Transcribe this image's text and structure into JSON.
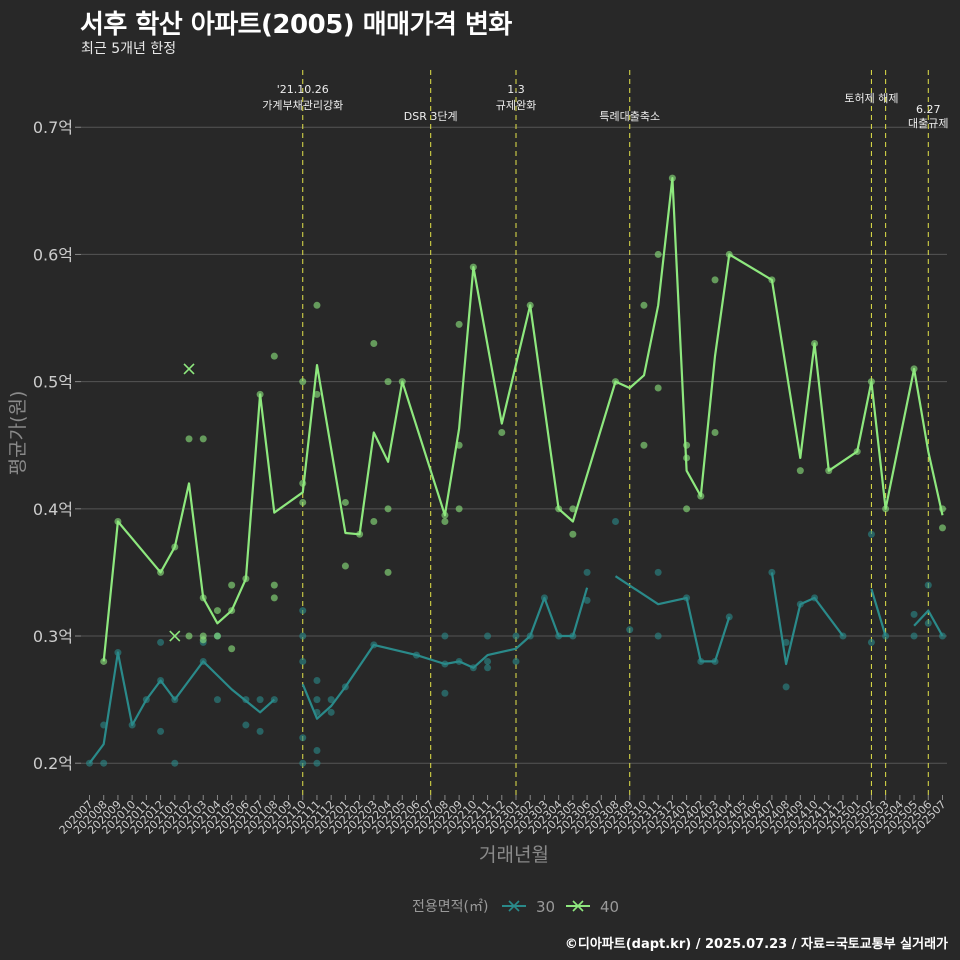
{
  "header": {
    "title": "서후 학산 아파트(2005) 매매가격 변화",
    "subtitle": "최근 5개년 한정"
  },
  "footer": {
    "credit": "©디아파트(dapt.kr) / 2025.07.23 / 자료=국토교통부 실거래가"
  },
  "colors": {
    "s30": "#2a8a8a",
    "s40": "#8ee87e",
    "event_line": "#e3e34a",
    "grid": "#555555",
    "text": "#cccccc"
  },
  "chart_data": {
    "type": "line",
    "xlabel": "거래년월",
    "ylabel": "평균가(원)",
    "ylim": [
      0.175,
      0.745
    ],
    "yticks": [
      0.2,
      0.3,
      0.4,
      0.5,
      0.6,
      0.7
    ],
    "ytick_labels": [
      "0.2억",
      "0.3억",
      "0.4억",
      "0.5억",
      "0.6억",
      "0.7억"
    ],
    "months": [
      "202007",
      "202008",
      "202009",
      "202010",
      "202011",
      "202012",
      "202101",
      "202102",
      "202103",
      "202104",
      "202105",
      "202106",
      "202107",
      "202108",
      "202109",
      "202110",
      "202111",
      "202112",
      "202201",
      "202202",
      "202203",
      "202204",
      "202205",
      "202206",
      "202207",
      "202208",
      "202209",
      "202210",
      "202211",
      "202212",
      "202301",
      "202302",
      "202303",
      "202304",
      "202305",
      "202306",
      "202307",
      "202308",
      "202309",
      "202310",
      "202311",
      "202312",
      "202401",
      "202402",
      "202403",
      "202404",
      "202405",
      "202406",
      "202407",
      "202408",
      "202409",
      "202410",
      "202411",
      "202412",
      "202501",
      "202502",
      "202503",
      "202504",
      "202505",
      "202506",
      "202507"
    ],
    "legend_title": "전용면적(㎡)",
    "legend_position": "bottom",
    "series": [
      {
        "name": "30",
        "color": "#2a8a8a",
        "lines": [
          [
            [
              0,
              0.2
            ],
            [
              1,
              0.215
            ],
            [
              2,
              0.287
            ],
            [
              3,
              0.23
            ],
            [
              4,
              0.25
            ],
            [
              5,
              0.265
            ],
            [
              6,
              0.25
            ],
            [
              8,
              0.28
            ],
            [
              10,
              0.258
            ],
            [
              12,
              0.24
            ],
            [
              13,
              0.25
            ]
          ],
          [
            [
              15,
              0.262
            ],
            [
              16,
              0.235
            ],
            [
              17,
              0.245
            ],
            [
              18,
              0.26
            ],
            [
              20,
              0.293
            ],
            [
              23,
              0.285
            ],
            [
              25,
              0.278
            ],
            [
              26,
              0.28
            ],
            [
              27,
              0.275
            ],
            [
              28,
              0.285
            ],
            [
              30,
              0.29
            ],
            [
              31,
              0.3
            ],
            [
              32,
              0.33
            ],
            [
              33,
              0.3
            ],
            [
              34,
              0.3
            ],
            [
              35,
              0.338
            ]
          ],
          [
            [
              37,
              0.347
            ],
            [
              40,
              0.325
            ],
            [
              42,
              0.33
            ],
            [
              43,
              0.28
            ],
            [
              44,
              0.28
            ],
            [
              45,
              0.315
            ]
          ],
          [
            [
              48,
              0.35
            ],
            [
              49,
              0.278
            ],
            [
              50,
              0.325
            ],
            [
              51,
              0.33
            ],
            [
              53,
              0.3
            ]
          ],
          [
            [
              55,
              0.337
            ],
            [
              56,
              0.3
            ]
          ],
          [
            [
              58,
              0.308
            ],
            [
              59,
              0.32
            ],
            [
              60,
              0.3
            ]
          ]
        ],
        "points": [
          [
            0,
            0.2
          ],
          [
            1,
            0.23
          ],
          [
            1,
            0.2
          ],
          [
            2,
            0.287
          ],
          [
            3,
            0.23
          ],
          [
            4,
            0.25
          ],
          [
            5,
            0.295
          ],
          [
            5,
            0.265
          ],
          [
            5,
            0.225
          ],
          [
            6,
            0.25
          ],
          [
            6,
            0.2
          ],
          [
            8,
            0.28
          ],
          [
            8,
            0.295
          ],
          [
            9,
            0.3
          ],
          [
            9,
            0.25
          ],
          [
            11,
            0.25
          ],
          [
            11,
            0.23
          ],
          [
            12,
            0.225
          ],
          [
            12,
            0.25
          ],
          [
            13,
            0.25
          ],
          [
            15,
            0.32
          ],
          [
            15,
            0.3
          ],
          [
            15,
            0.28
          ],
          [
            15,
            0.22
          ],
          [
            15,
            0.2
          ],
          [
            16,
            0.265
          ],
          [
            16,
            0.25
          ],
          [
            16,
            0.24
          ],
          [
            16,
            0.21
          ],
          [
            16,
            0.2
          ],
          [
            17,
            0.25
          ],
          [
            17,
            0.24
          ],
          [
            18,
            0.26
          ],
          [
            20,
            0.293
          ],
          [
            23,
            0.285
          ],
          [
            25,
            0.3
          ],
          [
            25,
            0.278
          ],
          [
            25,
            0.255
          ],
          [
            26,
            0.28
          ],
          [
            27,
            0.275
          ],
          [
            28,
            0.3
          ],
          [
            28,
            0.28
          ],
          [
            28,
            0.275
          ],
          [
            30,
            0.3
          ],
          [
            30,
            0.28
          ],
          [
            31,
            0.3
          ],
          [
            32,
            0.33
          ],
          [
            33,
            0.3
          ],
          [
            34,
            0.3
          ],
          [
            35,
            0.35
          ],
          [
            35,
            0.328
          ],
          [
            37,
            0.39
          ],
          [
            38,
            0.305
          ],
          [
            40,
            0.35
          ],
          [
            40,
            0.3
          ],
          [
            42,
            0.33
          ],
          [
            43,
            0.28
          ],
          [
            44,
            0.28
          ],
          [
            45,
            0.315
          ],
          [
            48,
            0.35
          ],
          [
            49,
            0.295
          ],
          [
            49,
            0.26
          ],
          [
            50,
            0.325
          ],
          [
            51,
            0.33
          ],
          [
            53,
            0.3
          ],
          [
            55,
            0.38
          ],
          [
            55,
            0.295
          ],
          [
            56,
            0.3
          ],
          [
            58,
            0.317
          ],
          [
            58,
            0.3
          ],
          [
            59,
            0.34
          ],
          [
            59,
            0.31
          ],
          [
            60,
            0.3
          ]
        ]
      },
      {
        "name": "40",
        "color": "#8ee87e",
        "lines": [
          [
            [
              1,
              0.28
            ],
            [
              2,
              0.39
            ],
            [
              5,
              0.35
            ],
            [
              6,
              0.37
            ],
            [
              7,
              0.42
            ],
            [
              8,
              0.33
            ],
            [
              9,
              0.31
            ],
            [
              10,
              0.32
            ],
            [
              11,
              0.345
            ],
            [
              12,
              0.49
            ],
            [
              13,
              0.397
            ],
            [
              15,
              0.413
            ],
            [
              16,
              0.513
            ],
            [
              18,
              0.381
            ],
            [
              19,
              0.38
            ],
            [
              20,
              0.46
            ],
            [
              21,
              0.437
            ],
            [
              22,
              0.5
            ],
            [
              25,
              0.395
            ],
            [
              26,
              0.463
            ],
            [
              27,
              0.59
            ],
            [
              29,
              0.467
            ],
            [
              31,
              0.56
            ],
            [
              33,
              0.4
            ],
            [
              34,
              0.39
            ],
            [
              37,
              0.5
            ],
            [
              38,
              0.495
            ],
            [
              39,
              0.505
            ],
            [
              40,
              0.56
            ],
            [
              41,
              0.66
            ],
            [
              42,
              0.43
            ],
            [
              43,
              0.41
            ],
            [
              44,
              0.52
            ],
            [
              45,
              0.6
            ],
            [
              48,
              0.58
            ],
            [
              50,
              0.44
            ],
            [
              51,
              0.53
            ],
            [
              52,
              0.43
            ],
            [
              54,
              0.445
            ],
            [
              55,
              0.5
            ],
            [
              56,
              0.4
            ],
            [
              58,
              0.51
            ],
            [
              59,
              0.445
            ],
            [
              60,
              0.395
            ]
          ]
        ],
        "points": [
          [
            1,
            0.28
          ],
          [
            2,
            0.39
          ],
          [
            5,
            0.35
          ],
          [
            6,
            0.37
          ],
          [
            7,
            0.455
          ],
          [
            7,
            0.3
          ],
          [
            8,
            0.455
          ],
          [
            8,
            0.33
          ],
          [
            8,
            0.3
          ],
          [
            8,
            0.297
          ],
          [
            9,
            0.32
          ],
          [
            9,
            0.3
          ],
          [
            10,
            0.34
          ],
          [
            10,
            0.32
          ],
          [
            10,
            0.29
          ],
          [
            11,
            0.345
          ],
          [
            12,
            0.49
          ],
          [
            13,
            0.52
          ],
          [
            13,
            0.34
          ],
          [
            13,
            0.33
          ],
          [
            15,
            0.5
          ],
          [
            15,
            0.42
          ],
          [
            15,
            0.405
          ],
          [
            16,
            0.56
          ],
          [
            16,
            0.49
          ],
          [
            18,
            0.405
          ],
          [
            18,
            0.355
          ],
          [
            19,
            0.38
          ],
          [
            20,
            0.53
          ],
          [
            20,
            0.39
          ],
          [
            21,
            0.5
          ],
          [
            21,
            0.4
          ],
          [
            21,
            0.35
          ],
          [
            22,
            0.5
          ],
          [
            25,
            0.395
          ],
          [
            25,
            0.39
          ],
          [
            26,
            0.545
          ],
          [
            26,
            0.45
          ],
          [
            26,
            0.4
          ],
          [
            27,
            0.59
          ],
          [
            29,
            0.46
          ],
          [
            31,
            0.56
          ],
          [
            33,
            0.4
          ],
          [
            34,
            0.4
          ],
          [
            34,
            0.38
          ],
          [
            37,
            0.5
          ],
          [
            39,
            0.56
          ],
          [
            39,
            0.45
          ],
          [
            40,
            0.6
          ],
          [
            40,
            0.495
          ],
          [
            41,
            0.66
          ],
          [
            42,
            0.45
          ],
          [
            42,
            0.44
          ],
          [
            42,
            0.4
          ],
          [
            43,
            0.41
          ],
          [
            44,
            0.58
          ],
          [
            44,
            0.46
          ],
          [
            45,
            0.6
          ],
          [
            48,
            0.58
          ],
          [
            50,
            0.43
          ],
          [
            51,
            0.53
          ],
          [
            52,
            0.43
          ],
          [
            54,
            0.445
          ],
          [
            55,
            0.5
          ],
          [
            56,
            0.4
          ],
          [
            58,
            0.51
          ],
          [
            60,
            0.4
          ],
          [
            60,
            0.385
          ]
        ],
        "cross_markers": [
          [
            6,
            0.3
          ],
          [
            7,
            0.51
          ]
        ]
      }
    ],
    "events": [
      {
        "month_index": 15,
        "lines": [
          "'21.10.26",
          "가계부채관리강화"
        ],
        "level": 0
      },
      {
        "month_index": 24,
        "lines": [
          "DSR 3단계"
        ],
        "level": 1
      },
      {
        "month_index": 30,
        "lines": [
          "1.3",
          "규제완화"
        ],
        "level": 0
      },
      {
        "month_index": 38,
        "lines": [
          "특례대출축소"
        ],
        "level": 1
      },
      {
        "month_index": 55,
        "lines": [
          "토허제 해제"
        ],
        "level": 0
      },
      {
        "month_index": 56,
        "lines": [],
        "level": 0
      },
      {
        "month_index": 59,
        "lines": [
          "6.27",
          "대출규제"
        ],
        "level": 1
      }
    ]
  }
}
